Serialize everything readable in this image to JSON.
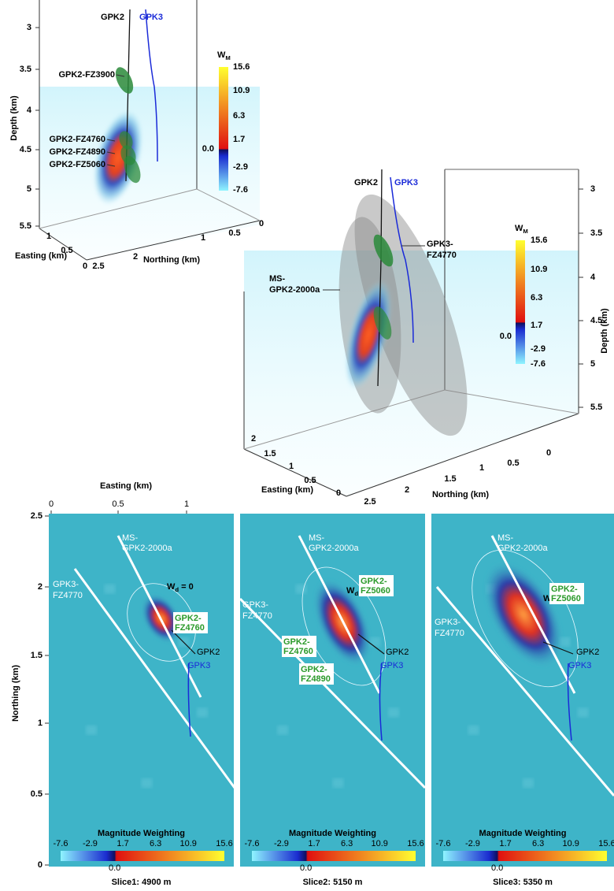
{
  "panel_a": {
    "depth_axis": {
      "label": "Depth (km)",
      "ticks": [
        "3",
        "3.5",
        "4",
        "4.5",
        "5",
        "5.5"
      ]
    },
    "easting_axis": {
      "label": "Easting (km)",
      "ticks": [
        "1",
        "0.5",
        "0"
      ]
    },
    "northing_axis": {
      "label": "Northing (km)",
      "ticks": [
        "2.5",
        "2",
        "1",
        "0.5",
        "0"
      ]
    },
    "wells": [
      "GPK2",
      "GPK3"
    ],
    "zones": [
      "GPK2-FZ3900",
      "GPK2-FZ4760",
      "GPK2-FZ4890",
      "GPK2-FZ5060"
    ],
    "colorbar": {
      "symbol": "W",
      "subscript": "M",
      "ticks": [
        "15.6",
        "10.9",
        "6.3",
        "1.7",
        "-2.9",
        "-7.6"
      ],
      "zero": "0.0"
    }
  },
  "panel_b": {
    "depth_axis": {
      "label": "Depth (km)",
      "ticks": [
        "3",
        "3.5",
        "4",
        "4.5",
        "5",
        "5.5"
      ]
    },
    "easting_axis": {
      "label": "Easting (km)",
      "ticks": [
        "2",
        "1.5",
        "1",
        "0.5",
        "0"
      ]
    },
    "northing_axis": {
      "label": "Northing (km)",
      "ticks": [
        "2.5",
        "2",
        "1.5",
        "1",
        "0.5",
        "0"
      ]
    },
    "wells": [
      "GPK2",
      "GPK3"
    ],
    "fault_label": [
      "GPK3-",
      "FZ4770"
    ],
    "ms_label": [
      "MS-",
      "GPK2-2000a"
    ],
    "colorbar": {
      "symbol": "W",
      "subscript": "M",
      "ticks": [
        "15.6",
        "10.9",
        "6.3",
        "1.7",
        "-2.9",
        "-7.6"
      ],
      "zero": "0.0"
    }
  },
  "slices": {
    "easting_axis": {
      "label": "Easting (km)",
      "ticks": [
        "0",
        "0.5",
        "1"
      ]
    },
    "northing_axis": {
      "label": "Northing (km)",
      "ticks": [
        "2.5",
        "2",
        "1.5",
        "1",
        "0.5",
        "0"
      ]
    },
    "ms_label": [
      "MS-",
      "GPK2-2000a"
    ],
    "fault_label": [
      "GPK3-",
      "FZ4770"
    ],
    "contour": {
      "symbol": "W",
      "subscript": "d",
      "rest": " = 0"
    },
    "wells": [
      "GPK2",
      "GPK3"
    ],
    "colorbar": {
      "title": "Magnitude Weighting",
      "ticks": [
        "-7.6",
        "-2.9",
        "1.7",
        "6.3",
        "10.9",
        "15.6"
      ],
      "zero": "0.0"
    },
    "panels": [
      {
        "caption": "Slice1: 4900 m",
        "zones": [
          [
            "GPK2-",
            "FZ4760"
          ]
        ]
      },
      {
        "caption": "Slice2: 5150 m",
        "zones": [
          [
            "GPK2-",
            "FZ5060"
          ],
          [
            "GPK2-",
            "FZ4760"
          ],
          [
            "GPK2-",
            "FZ4890"
          ]
        ]
      },
      {
        "caption": "Slice3: 5350 m",
        "zones": [
          [
            "GPK2-",
            "FZ5060"
          ]
        ]
      }
    ]
  }
}
